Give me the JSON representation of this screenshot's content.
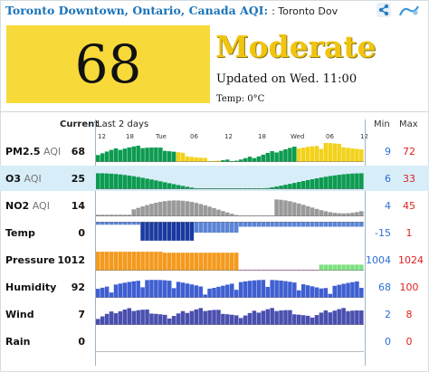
{
  "header": {
    "city": "Toronto Downtown, Ontario, Canada AQI:",
    "station": ": Toronto Dov"
  },
  "icons": {
    "share": "share-icon",
    "logo": "aqicn-logo-icon"
  },
  "aqi": {
    "value": "68",
    "level": "Moderate",
    "updated": "Updated on Wed. 11:00",
    "temp": "Temp: 0°C",
    "color": "#f7d93a"
  },
  "columns": {
    "current": "Current",
    "last2": "Last 2 days",
    "min": "Min",
    "max": "Max"
  },
  "time_ticks": [
    "12",
    "18",
    "Tue",
    "06",
    "12",
    "18",
    "Wed",
    "06",
    "12"
  ],
  "rows": [
    {
      "id": "pm25",
      "name": "PM2.5",
      "suffix": " AQI",
      "current": "68",
      "min": "9",
      "max": "72",
      "highlight": false
    },
    {
      "id": "o3",
      "name": "O3",
      "suffix": " AQI",
      "current": "25",
      "min": "6",
      "max": "33",
      "highlight": true
    },
    {
      "id": "no2",
      "name": "NO2",
      "suffix": " AQI",
      "current": "14",
      "min": "4",
      "max": "45",
      "highlight": false
    },
    {
      "id": "temp",
      "name": "Temp",
      "suffix": "",
      "current": "0",
      "min": "-15",
      "max": "1",
      "highlight": false
    },
    {
      "id": "pressure",
      "name": "Pressure",
      "suffix": "",
      "current": "1012",
      "min": "1004",
      "max": "1024",
      "highlight": false
    },
    {
      "id": "humidity",
      "name": "Humidity",
      "suffix": "",
      "current": "92",
      "min": "68",
      "max": "100",
      "highlight": false
    },
    {
      "id": "wind",
      "name": "Wind",
      "suffix": "",
      "current": "7",
      "min": "2",
      "max": "8",
      "highlight": false
    },
    {
      "id": "rain",
      "name": "Rain",
      "suffix": "",
      "current": "0",
      "min": "0",
      "max": "0",
      "highlight": false
    }
  ]
}
